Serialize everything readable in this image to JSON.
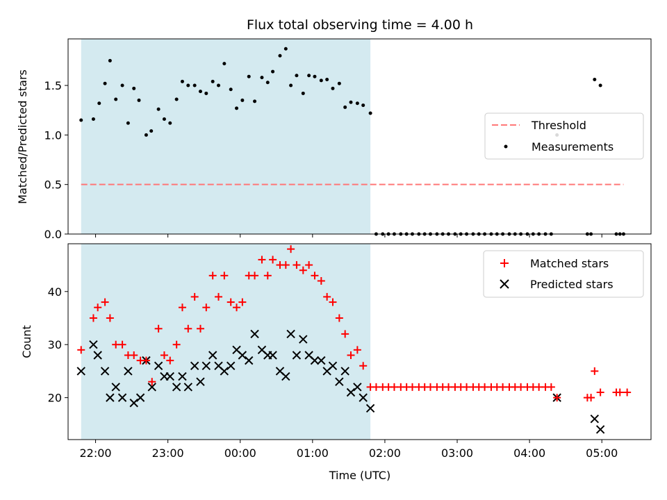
{
  "chart_data": {
    "title": "Flux total observing time = 4.00 h",
    "colors": {
      "observing_span": "#d4eaf0",
      "threshold": "#ff7777",
      "measurements": "#000000",
      "matched": "#ff0000",
      "predicted": "#000000"
    },
    "x_axis": {
      "label": "Time (UTC)",
      "ticks": [
        "22:00",
        "23:00",
        "00:00",
        "01:00",
        "02:00",
        "03:00",
        "04:00",
        "05:00"
      ],
      "range_hours": [
        21.62,
        29.68
      ]
    },
    "observing_span_hours": [
      21.8,
      25.8
    ],
    "panels": [
      {
        "type": "scatter",
        "ylabel": "Matched/Predicted stars",
        "ylim": [
          0,
          1.97
        ],
        "yticks": [
          "0.0",
          "0.5",
          "1.0",
          "1.5"
        ],
        "ytick_values": [
          0,
          0.5,
          1.0,
          1.5
        ],
        "threshold": {
          "name": "Threshold",
          "value": 0.5,
          "x_range": [
            21.8,
            29.3
          ]
        },
        "measurements": {
          "name": "Measurements",
          "points": [
            [
              21.8,
              1.15
            ],
            [
              21.97,
              1.16
            ],
            [
              22.05,
              1.32
            ],
            [
              22.13,
              1.52
            ],
            [
              22.2,
              1.75
            ],
            [
              22.28,
              1.36
            ],
            [
              22.37,
              1.5
            ],
            [
              22.45,
              1.12
            ],
            [
              22.53,
              1.47
            ],
            [
              22.6,
              1.35
            ],
            [
              22.7,
              1.0
            ],
            [
              22.77,
              1.04
            ],
            [
              22.87,
              1.26
            ],
            [
              22.95,
              1.16
            ],
            [
              23.03,
              1.12
            ],
            [
              23.12,
              1.36
            ],
            [
              23.2,
              1.54
            ],
            [
              23.28,
              1.5
            ],
            [
              23.37,
              1.5
            ],
            [
              23.45,
              1.44
            ],
            [
              23.53,
              1.42
            ],
            [
              23.62,
              1.54
            ],
            [
              23.7,
              1.5
            ],
            [
              23.78,
              1.72
            ],
            [
              23.87,
              1.46
            ],
            [
              23.95,
              1.27
            ],
            [
              24.03,
              1.35
            ],
            [
              24.12,
              1.59
            ],
            [
              24.2,
              1.34
            ],
            [
              24.3,
              1.58
            ],
            [
              24.38,
              1.53
            ],
            [
              24.45,
              1.64
            ],
            [
              24.55,
              1.8
            ],
            [
              24.63,
              1.87
            ],
            [
              24.7,
              1.5
            ],
            [
              24.78,
              1.6
            ],
            [
              24.87,
              1.42
            ],
            [
              24.95,
              1.6
            ],
            [
              25.03,
              1.59
            ],
            [
              25.12,
              1.55
            ],
            [
              25.2,
              1.56
            ],
            [
              25.28,
              1.47
            ],
            [
              25.37,
              1.52
            ],
            [
              25.45,
              1.28
            ],
            [
              25.53,
              1.33
            ],
            [
              25.62,
              1.32
            ],
            [
              25.7,
              1.3
            ],
            [
              25.8,
              1.22
            ],
            [
              25.88,
              0
            ],
            [
              25.97,
              0
            ],
            [
              26.05,
              0
            ],
            [
              26.13,
              0
            ],
            [
              26.22,
              0
            ],
            [
              26.3,
              0
            ],
            [
              26.38,
              0
            ],
            [
              26.47,
              0
            ],
            [
              26.55,
              0
            ],
            [
              26.63,
              0
            ],
            [
              26.72,
              0
            ],
            [
              26.8,
              0
            ],
            [
              26.88,
              0
            ],
            [
              26.97,
              0
            ],
            [
              27.05,
              0
            ],
            [
              27.13,
              0
            ],
            [
              27.22,
              0
            ],
            [
              27.3,
              0
            ],
            [
              27.38,
              0
            ],
            [
              27.47,
              0
            ],
            [
              27.55,
              0
            ],
            [
              27.63,
              0
            ],
            [
              27.72,
              0
            ],
            [
              27.8,
              0
            ],
            [
              27.88,
              0
            ],
            [
              27.97,
              0
            ],
            [
              28.05,
              0
            ],
            [
              28.13,
              0
            ],
            [
              28.22,
              0
            ],
            [
              28.3,
              0
            ],
            [
              28.38,
              1.0
            ],
            [
              28.8,
              0
            ],
            [
              28.85,
              0
            ],
            [
              28.9,
              1.56
            ],
            [
              28.98,
              1.5
            ],
            [
              29.2,
              0
            ],
            [
              29.25,
              0
            ],
            [
              29.3,
              0
            ]
          ]
        },
        "legend": [
          "Threshold",
          "Measurements"
        ],
        "legend_loc": "center-right"
      },
      {
        "type": "scatter",
        "ylabel": "Count",
        "ylim": [
          12.1,
          49
        ],
        "yticks": [
          "20",
          "30",
          "40"
        ],
        "ytick_values": [
          20,
          30,
          40
        ],
        "series": [
          {
            "name": "Matched stars",
            "marker": "+",
            "points": [
              [
                21.8,
                29
              ],
              [
                21.97,
                35
              ],
              [
                22.03,
                37
              ],
              [
                22.13,
                38
              ],
              [
                22.2,
                35
              ],
              [
                22.28,
                30
              ],
              [
                22.37,
                30
              ],
              [
                22.45,
                28
              ],
              [
                22.53,
                28
              ],
              [
                22.62,
                27
              ],
              [
                22.7,
                27
              ],
              [
                22.78,
                23
              ],
              [
                22.87,
                33
              ],
              [
                22.95,
                28
              ],
              [
                23.03,
                27
              ],
              [
                23.12,
                30
              ],
              [
                23.2,
                37
              ],
              [
                23.28,
                33
              ],
              [
                23.37,
                39
              ],
              [
                23.45,
                33
              ],
              [
                23.53,
                37
              ],
              [
                23.62,
                43
              ],
              [
                23.7,
                39
              ],
              [
                23.78,
                43
              ],
              [
                23.87,
                38
              ],
              [
                23.95,
                37
              ],
              [
                24.03,
                38
              ],
              [
                24.12,
                43
              ],
              [
                24.2,
                43
              ],
              [
                24.3,
                46
              ],
              [
                24.38,
                43
              ],
              [
                24.45,
                46
              ],
              [
                24.55,
                45
              ],
              [
                24.63,
                45
              ],
              [
                24.7,
                48
              ],
              [
                24.78,
                45
              ],
              [
                24.87,
                44
              ],
              [
                24.95,
                45
              ],
              [
                25.03,
                43
              ],
              [
                25.12,
                42
              ],
              [
                25.2,
                39
              ],
              [
                25.28,
                38
              ],
              [
                25.37,
                35
              ],
              [
                25.45,
                32
              ],
              [
                25.53,
                28
              ],
              [
                25.62,
                29
              ],
              [
                25.7,
                26
              ],
              [
                25.8,
                22
              ],
              [
                25.88,
                22
              ],
              [
                25.97,
                22
              ],
              [
                26.05,
                22
              ],
              [
                26.13,
                22
              ],
              [
                26.22,
                22
              ],
              [
                26.3,
                22
              ],
              [
                26.38,
                22
              ],
              [
                26.47,
                22
              ],
              [
                26.55,
                22
              ],
              [
                26.63,
                22
              ],
              [
                26.72,
                22
              ],
              [
                26.8,
                22
              ],
              [
                26.88,
                22
              ],
              [
                26.97,
                22
              ],
              [
                27.05,
                22
              ],
              [
                27.13,
                22
              ],
              [
                27.22,
                22
              ],
              [
                27.3,
                22
              ],
              [
                27.38,
                22
              ],
              [
                27.47,
                22
              ],
              [
                27.55,
                22
              ],
              [
                27.63,
                22
              ],
              [
                27.72,
                22
              ],
              [
                27.8,
                22
              ],
              [
                27.88,
                22
              ],
              [
                27.97,
                22
              ],
              [
                28.05,
                22
              ],
              [
                28.13,
                22
              ],
              [
                28.22,
                22
              ],
              [
                28.3,
                22
              ],
              [
                28.38,
                20
              ],
              [
                28.8,
                20
              ],
              [
                28.85,
                20
              ],
              [
                28.9,
                25
              ],
              [
                28.98,
                21
              ],
              [
                29.2,
                21
              ],
              [
                29.25,
                21
              ],
              [
                29.35,
                21
              ]
            ]
          },
          {
            "name": "Predicted stars",
            "marker": "x",
            "points": [
              [
                21.8,
                25
              ],
              [
                21.97,
                30
              ],
              [
                22.03,
                28
              ],
              [
                22.13,
                25
              ],
              [
                22.2,
                20
              ],
              [
                22.28,
                22
              ],
              [
                22.37,
                20
              ],
              [
                22.45,
                25
              ],
              [
                22.53,
                19
              ],
              [
                22.62,
                20
              ],
              [
                22.7,
                27
              ],
              [
                22.78,
                22
              ],
              [
                22.87,
                26
              ],
              [
                22.95,
                24
              ],
              [
                23.03,
                24
              ],
              [
                23.12,
                22
              ],
              [
                23.2,
                24
              ],
              [
                23.28,
                22
              ],
              [
                23.37,
                26
              ],
              [
                23.45,
                23
              ],
              [
                23.53,
                26
              ],
              [
                23.62,
                28
              ],
              [
                23.7,
                26
              ],
              [
                23.78,
                25
              ],
              [
                23.87,
                26
              ],
              [
                23.95,
                29
              ],
              [
                24.03,
                28
              ],
              [
                24.12,
                27
              ],
              [
                24.2,
                32
              ],
              [
                24.3,
                29
              ],
              [
                24.38,
                28
              ],
              [
                24.45,
                28
              ],
              [
                24.55,
                25
              ],
              [
                24.63,
                24
              ],
              [
                24.7,
                32
              ],
              [
                24.78,
                28
              ],
              [
                24.87,
                31
              ],
              [
                24.95,
                28
              ],
              [
                25.03,
                27
              ],
              [
                25.12,
                27
              ],
              [
                25.2,
                25
              ],
              [
                25.28,
                26
              ],
              [
                25.37,
                23
              ],
              [
                25.45,
                25
              ],
              [
                25.53,
                21
              ],
              [
                25.62,
                22
              ],
              [
                25.7,
                20
              ],
              [
                25.8,
                18
              ],
              [
                28.38,
                20
              ],
              [
                28.9,
                16
              ],
              [
                28.98,
                14
              ]
            ]
          }
        ],
        "legend": [
          "Matched stars",
          "Predicted stars"
        ],
        "legend_loc": "upper-right"
      }
    ]
  }
}
